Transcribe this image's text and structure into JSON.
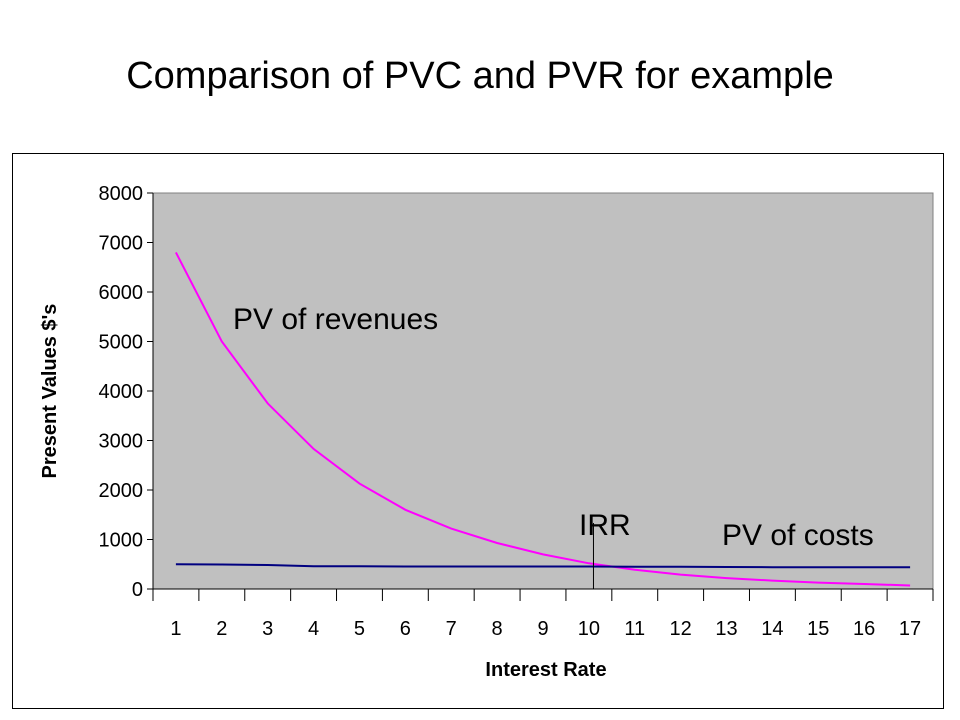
{
  "slide": {
    "title": "Comparison of PVC and PVR for example"
  },
  "chart_data": {
    "type": "line",
    "xlabel": "Interest Rate",
    "ylabel": "Present Values $'s",
    "categories": [
      "1",
      "2",
      "3",
      "4",
      "5",
      "6",
      "7",
      "8",
      "9",
      "10",
      "11",
      "12",
      "13",
      "14",
      "15",
      "16",
      "17"
    ],
    "ylim": [
      0,
      8000
    ],
    "yticks": [
      "0",
      "1000",
      "2000",
      "3000",
      "4000",
      "5000",
      "6000",
      "7000",
      "8000"
    ],
    "grid": false,
    "plot_background": "#c0c0c0",
    "series": [
      {
        "label": "PV of revenues",
        "color": "#ff00ff",
        "values": [
          6800,
          5000,
          3750,
          2830,
          2130,
          1600,
          1220,
          930,
          700,
          520,
          390,
          290,
          220,
          170,
          130,
          100,
          70
        ]
      },
      {
        "label": "PV of costs",
        "color": "#000080",
        "values": [
          500,
          495,
          485,
          460,
          460,
          455,
          455,
          455,
          455,
          455,
          450,
          450,
          445,
          440,
          440,
          440,
          440
        ]
      }
    ],
    "annotations": [
      {
        "text": "IRR",
        "x": 10.1
      },
      {
        "text": "PV of revenues"
      },
      {
        "text": "PV of costs"
      }
    ]
  }
}
